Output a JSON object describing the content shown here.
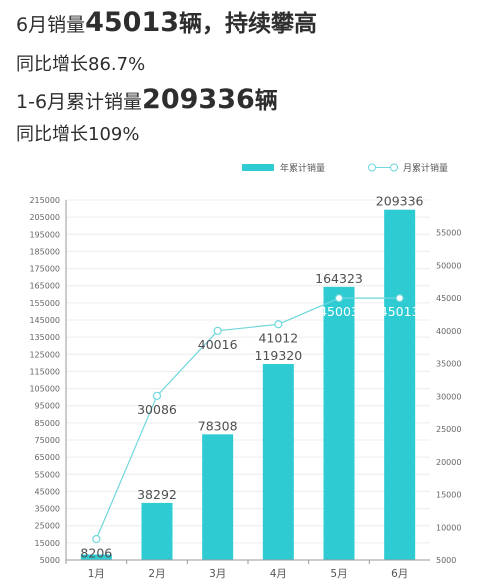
{
  "headline": {
    "l1_pre": "6月销量",
    "l1_num": "45013",
    "l1_unit": "辆",
    "l1_post": "，持续攀高",
    "l2": "同比增长86.7%",
    "l3_pre": "1-6月累计销量",
    "l3_num": "209336",
    "l3_unit": "辆",
    "l4": "同比增长109%"
  },
  "colors": {
    "bar": "#2ecbd3",
    "line": "#6fd6dc",
    "axis": "#999999"
  },
  "chart_data": {
    "type": "bar",
    "categories": [
      "1月",
      "2月",
      "3月",
      "4月",
      "5月",
      "6月"
    ],
    "series": [
      {
        "name": "年累计销量",
        "type": "bar",
        "axis": "left",
        "values": [
          8206,
          38292,
          78308,
          119320,
          164323,
          209336
        ],
        "labels": [
          "8206",
          "38292",
          "78308",
          "119320",
          "164323",
          "209336"
        ]
      },
      {
        "name": "月累计销量",
        "type": "line",
        "axis": "right",
        "values": [
          8206,
          30086,
          40016,
          41012,
          45003,
          45013
        ],
        "labels": [
          "8206",
          "30086",
          "40016",
          "41012",
          "45003",
          "45013"
        ]
      }
    ],
    "y_left": {
      "min": 5000,
      "max": 215000,
      "ticks": [
        "5000",
        "15000",
        "25000",
        "35000",
        "45000",
        "55000",
        "65000",
        "75000",
        "85000",
        "95000",
        "105000",
        "115000",
        "125000",
        "135000",
        "145000",
        "155000",
        "165000",
        "175000",
        "185000",
        "195000",
        "205000",
        "215000"
      ]
    },
    "y_right": {
      "min": 5000,
      "max": 60000,
      "ticks": [
        "5000",
        "10000",
        "15000",
        "20000",
        "25000",
        "30000",
        "35000",
        "40000",
        "45000",
        "50000",
        "55000"
      ]
    },
    "grid": true,
    "legend": "top-right"
  }
}
